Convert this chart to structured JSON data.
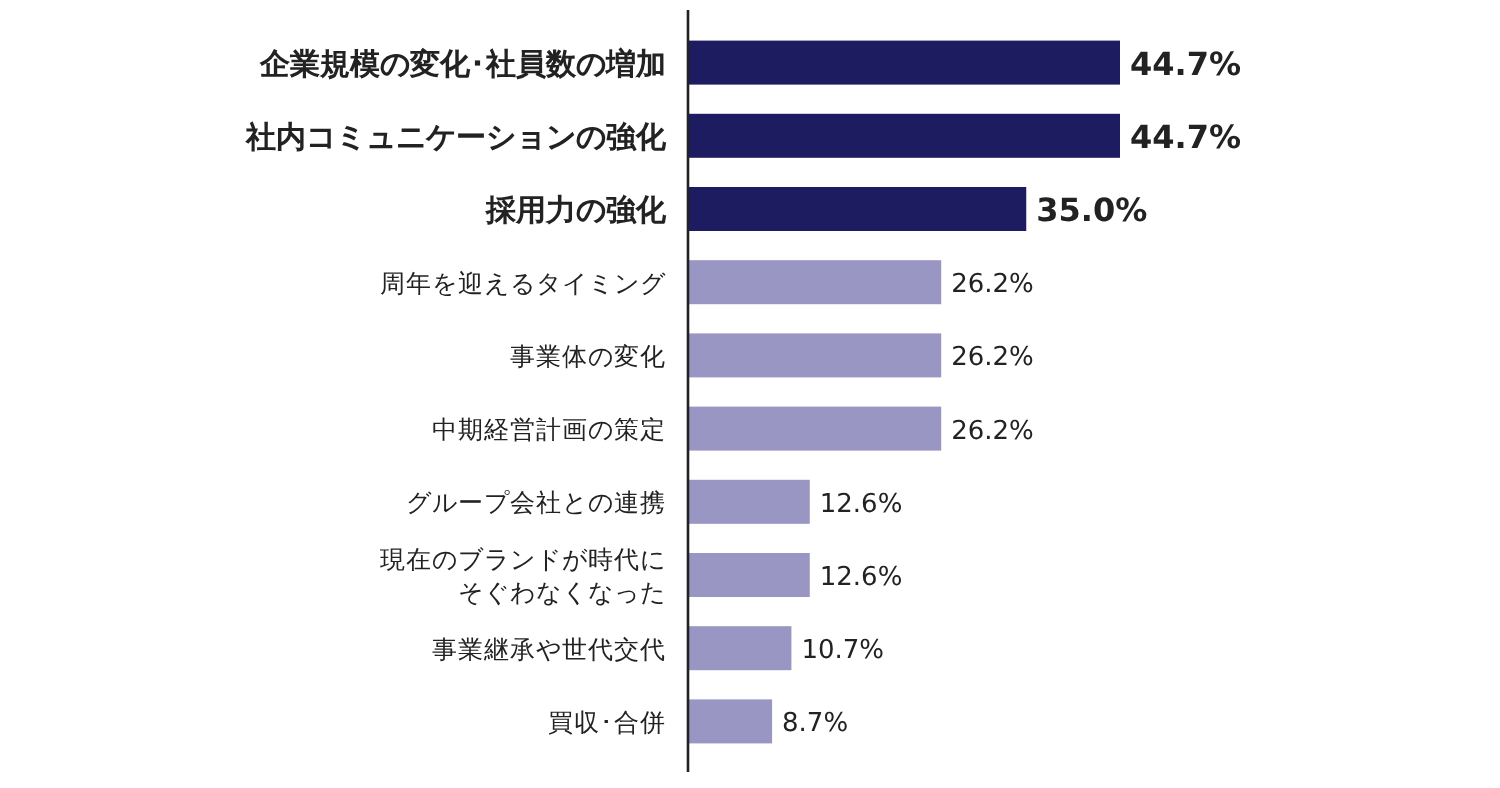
{
  "chart_data": {
    "type": "bar",
    "orientation": "horizontal",
    "categories": [
      "企業規模の変化･社員数の増加",
      "社内コミュニケーションの強化",
      "採用力の強化",
      "周年を迎えるタイミング",
      "事業体の変化",
      "中期経営計画の策定",
      "グループ会社との連携",
      "現在のブランドが時代にそぐわなくなった",
      "事業継承や世代交代",
      "買収･合併"
    ],
    "values": [
      44.7,
      44.7,
      35.0,
      26.2,
      26.2,
      26.2,
      12.6,
      12.6,
      10.7,
      8.7
    ],
    "value_labels": [
      "44.7%",
      "44.7%",
      "35.0%",
      "26.2%",
      "26.2%",
      "26.2%",
      "12.6%",
      "12.6%",
      "10.7%",
      "8.7%"
    ],
    "colors": [
      "#1e1c60",
      "#1e1c60",
      "#1e1c60",
      "#9a96c3",
      "#9a96c3",
      "#9a96c3",
      "#9a96c3",
      "#9a96c3",
      "#9a96c3",
      "#9a96c3"
    ]
  }
}
